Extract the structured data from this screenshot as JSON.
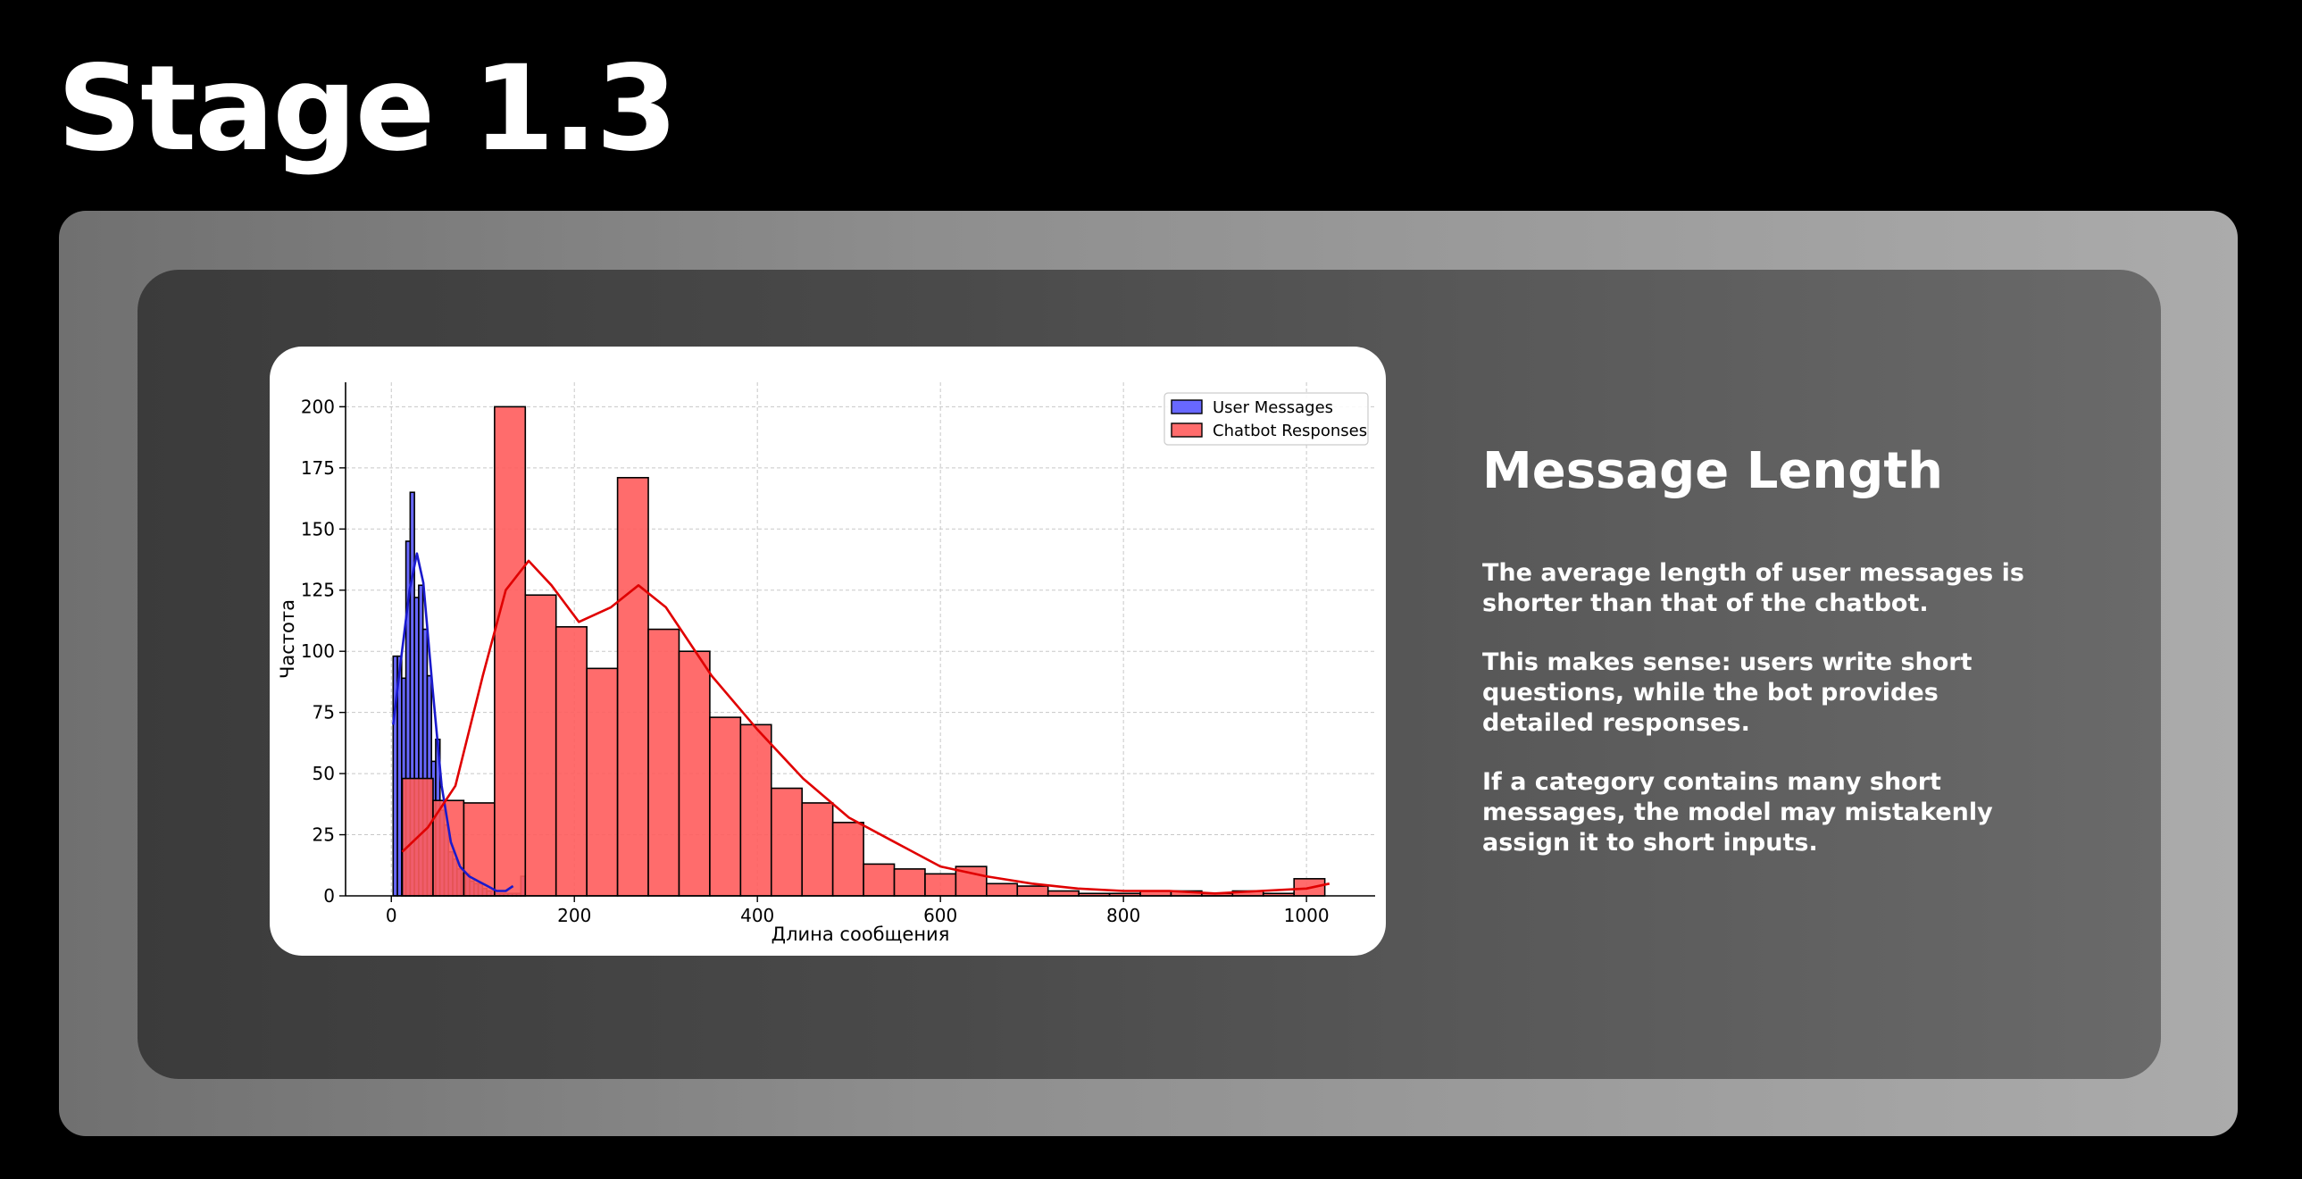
{
  "slide": {
    "title": "Stage 1.3"
  },
  "panel": {
    "heading": "Message Length",
    "paragraphs": [
      "The average length of user messages is shorter than that of the chatbot.",
      "This makes sense: users write short questions, while the bot provides detailed responses.",
      "If a category contains many short messages, the model may mistakenly assign it to short inputs."
    ]
  },
  "chart_data": {
    "type": "bar",
    "title": "",
    "xlabel": "Длина сообщения",
    "ylabel": "Частота",
    "xlim": [
      -50,
      1075
    ],
    "ylim": [
      0,
      210
    ],
    "xticks": [
      0,
      200,
      400,
      600,
      800,
      1000
    ],
    "yticks": [
      0,
      25,
      50,
      75,
      100,
      125,
      150,
      175,
      200
    ],
    "grid": true,
    "legend_position": "top-right",
    "colors": {
      "user": "#4d4dff",
      "chatbot": "#ff5c5c",
      "user_kde": "#1a1acc",
      "chatbot_kde": "#e00000"
    },
    "series": [
      {
        "name": "User Messages",
        "bin_start": 2,
        "bin_width": 4.65,
        "values": [
          98,
          98,
          89,
          145,
          165,
          122,
          127,
          109,
          90,
          55,
          64,
          35,
          29,
          18,
          15,
          11,
          9,
          9,
          6,
          5,
          5,
          3,
          2,
          2,
          1,
          1,
          1,
          1,
          1,
          1,
          8
        ],
        "kde": [
          [
            2,
            70
          ],
          [
            10,
            95
          ],
          [
            20,
            125
          ],
          [
            28,
            140
          ],
          [
            35,
            128
          ],
          [
            45,
            85
          ],
          [
            55,
            45
          ],
          [
            65,
            22
          ],
          [
            75,
            12
          ],
          [
            85,
            8
          ],
          [
            95,
            6
          ],
          [
            105,
            4
          ],
          [
            115,
            2
          ],
          [
            125,
            2
          ],
          [
            133,
            4
          ]
        ]
      },
      {
        "name": "Chatbot Responses",
        "bin_start": 12,
        "bin_width": 33.6,
        "values": [
          48,
          39,
          38,
          200,
          123,
          110,
          93,
          171,
          109,
          100,
          73,
          70,
          44,
          38,
          30,
          13,
          11,
          9,
          12,
          5,
          4,
          2,
          1,
          1,
          2,
          2,
          1,
          2,
          1,
          7
        ],
        "kde": [
          [
            12,
            18
          ],
          [
            40,
            28
          ],
          [
            70,
            45
          ],
          [
            100,
            90
          ],
          [
            125,
            125
          ],
          [
            150,
            137
          ],
          [
            175,
            127
          ],
          [
            205,
            112
          ],
          [
            240,
            118
          ],
          [
            270,
            127
          ],
          [
            300,
            118
          ],
          [
            350,
            90
          ],
          [
            400,
            68
          ],
          [
            450,
            48
          ],
          [
            500,
            32
          ],
          [
            550,
            22
          ],
          [
            600,
            12
          ],
          [
            650,
            8
          ],
          [
            700,
            5
          ],
          [
            750,
            3
          ],
          [
            800,
            2
          ],
          [
            850,
            2
          ],
          [
            900,
            1
          ],
          [
            950,
            2
          ],
          [
            1000,
            3
          ],
          [
            1025,
            5
          ]
        ]
      }
    ]
  }
}
